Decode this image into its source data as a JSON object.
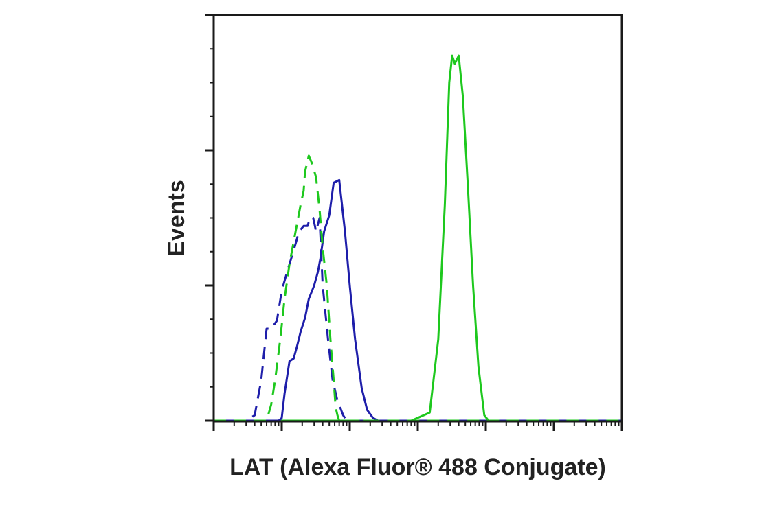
{
  "chart_data": {
    "type": "line",
    "subtype": "flow-cytometry-histogram-overlay",
    "xlabel": "LAT (Alexa Fluor® 488 Conjugate)",
    "ylabel": "Events",
    "x_scale": "log",
    "xlim": [
      1,
      1000000
    ],
    "ylim": [
      0,
      1.5
    ],
    "grid": false,
    "legend": "none",
    "y_tick_labels_shown": false,
    "x_tick_labels_shown": false,
    "series": [
      {
        "color": "#1ec81e",
        "dash": "solid",
        "points": [
          [
            1,
            0
          ],
          [
            800,
            0
          ],
          [
            1500,
            0.03
          ],
          [
            2000,
            0.3
          ],
          [
            2500,
            0.8
          ],
          [
            2900,
            1.25
          ],
          [
            3200,
            1.35
          ],
          [
            3500,
            1.32
          ],
          [
            4000,
            1.35
          ],
          [
            4600,
            1.2
          ],
          [
            5500,
            0.85
          ],
          [
            6500,
            0.5
          ],
          [
            7800,
            0.2
          ],
          [
            9500,
            0.02
          ],
          [
            11000,
            0
          ],
          [
            1000000,
            0
          ]
        ]
      },
      {
        "color": "#1e1eaa",
        "dash": "solid",
        "points": [
          [
            1,
            0
          ],
          [
            5,
            0
          ],
          [
            9,
            0
          ],
          [
            10,
            0.01
          ],
          [
            11,
            0.1
          ],
          [
            13,
            0.22
          ],
          [
            15,
            0.23
          ],
          [
            17,
            0.28
          ],
          [
            19,
            0.33
          ],
          [
            22,
            0.38
          ],
          [
            25,
            0.45
          ],
          [
            30,
            0.5
          ],
          [
            34,
            0.55
          ],
          [
            37,
            0.6
          ],
          [
            42,
            0.7
          ],
          [
            50,
            0.76
          ],
          [
            58,
            0.88
          ],
          [
            70,
            0.89
          ],
          [
            85,
            0.7
          ],
          [
            100,
            0.5
          ],
          [
            120,
            0.3
          ],
          [
            150,
            0.12
          ],
          [
            180,
            0.04
          ],
          [
            220,
            0.01
          ],
          [
            260,
            0
          ],
          [
            1000000,
            0
          ]
        ]
      },
      {
        "color": "#1e1eaa",
        "dash": "dashed",
        "points": [
          [
            1,
            0
          ],
          [
            3,
            0
          ],
          [
            4,
            0.02
          ],
          [
            5,
            0.15
          ],
          [
            6,
            0.34
          ],
          [
            7,
            0.34
          ],
          [
            8.5,
            0.37
          ],
          [
            10,
            0.48
          ],
          [
            12,
            0.55
          ],
          [
            15,
            0.63
          ],
          [
            18,
            0.7
          ],
          [
            21,
            0.72
          ],
          [
            24,
            0.72
          ],
          [
            26,
            0.75
          ],
          [
            29,
            0.75
          ],
          [
            32,
            0.7
          ],
          [
            36,
            0.75
          ],
          [
            40,
            0.5
          ],
          [
            48,
            0.3
          ],
          [
            56,
            0.15
          ],
          [
            65,
            0.08
          ],
          [
            80,
            0.02
          ],
          [
            90,
            0
          ],
          [
            1000000,
            0
          ]
        ]
      },
      {
        "color": "#1ec81e",
        "dash": "dashed",
        "points": [
          [
            1,
            0
          ],
          [
            6,
            0
          ],
          [
            7,
            0.06
          ],
          [
            8,
            0.15
          ],
          [
            9.5,
            0.3
          ],
          [
            11,
            0.45
          ],
          [
            13,
            0.58
          ],
          [
            16,
            0.7
          ],
          [
            19,
            0.8
          ],
          [
            21,
            0.85
          ],
          [
            22,
            0.92
          ],
          [
            25,
            0.98
          ],
          [
            28,
            0.95
          ],
          [
            32,
            0.9
          ],
          [
            36,
            0.78
          ],
          [
            40,
            0.64
          ],
          [
            46,
            0.5
          ],
          [
            52,
            0.3
          ],
          [
            58,
            0.15
          ],
          [
            62,
            0.05
          ],
          [
            66,
            0.02
          ],
          [
            70,
            0
          ],
          [
            1000000,
            0
          ]
        ]
      }
    ]
  },
  "style": {
    "axis_color": "#1a1a1a",
    "green": "#1ec81e",
    "blue": "#1e1eaa"
  }
}
